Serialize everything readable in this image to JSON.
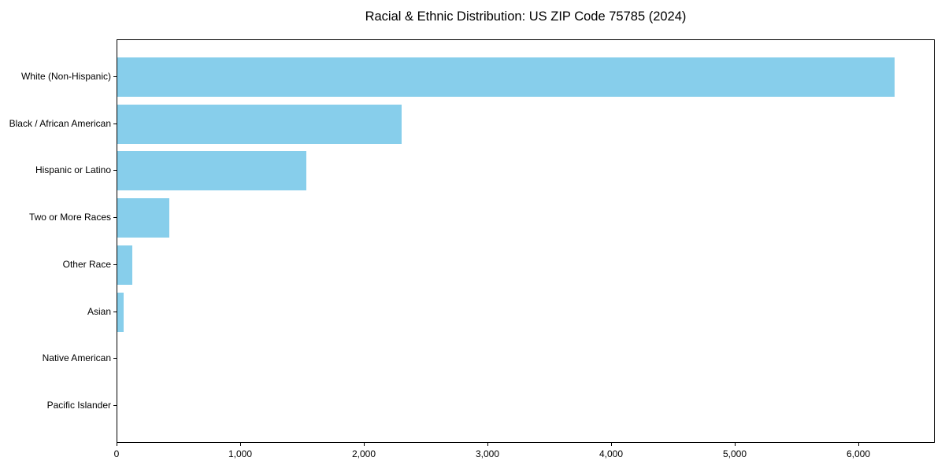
{
  "chart_data": {
    "type": "bar",
    "orientation": "horizontal",
    "title": "Racial & Ethnic Distribution: US ZIP Code 75785 (2024)",
    "categories": [
      "White (Non-Hispanic)",
      "Black / African American",
      "Hispanic or Latino",
      "Two or More Races",
      "Other Race",
      "Asian",
      "Native American",
      "Pacific Islander"
    ],
    "values": [
      6290,
      2300,
      1530,
      420,
      120,
      50,
      0,
      0
    ],
    "xlabel": "",
    "ylabel": "",
    "xlim": [
      0,
      6620
    ],
    "x_ticks": [
      0,
      1000,
      2000,
      3000,
      4000,
      5000,
      6000
    ],
    "x_tick_labels": [
      "0",
      "1,000",
      "2,000",
      "3,000",
      "4,000",
      "5,000",
      "6,000"
    ],
    "grid": false,
    "legend": false,
    "colors": {
      "bar": "#87CEEB",
      "spine": "#000000",
      "text": "#000000",
      "background": "#FFFFFF"
    }
  }
}
